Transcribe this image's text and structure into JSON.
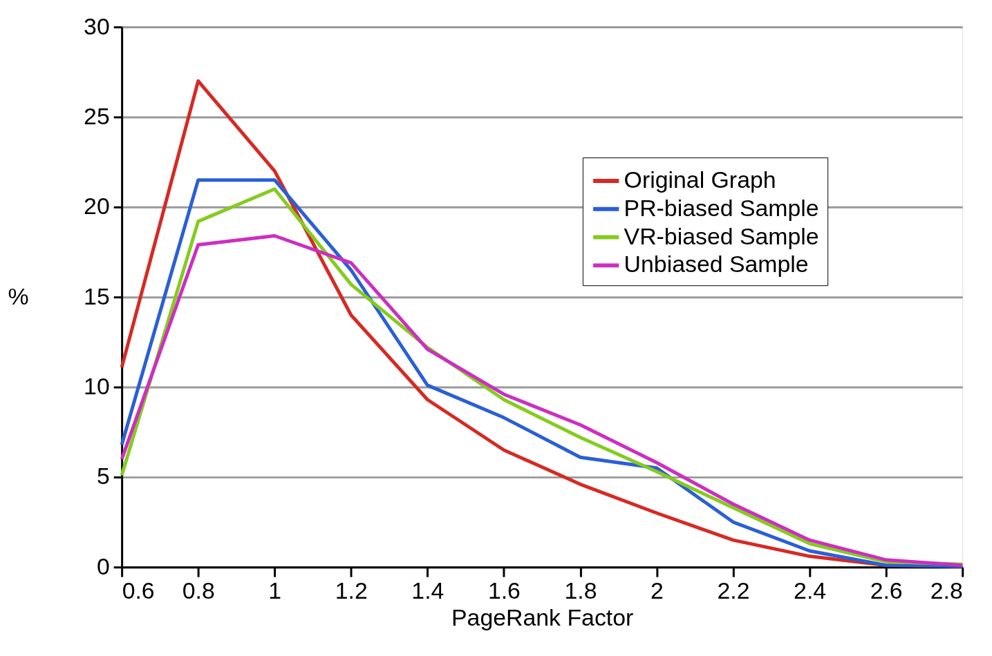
{
  "chart_data": {
    "type": "line",
    "xlabel": "PageRank Factor",
    "ylabel": "%",
    "x": [
      0.6,
      0.8,
      1.0,
      1.2,
      1.4,
      1.6,
      1.8,
      2.0,
      2.2,
      2.4,
      2.6,
      2.8
    ],
    "series": [
      {
        "name": "Original Graph",
        "color": "#d62a23",
        "values": [
          11.1,
          27.0,
          22.0,
          14.0,
          9.3,
          6.5,
          4.6,
          3.0,
          1.5,
          0.6,
          0.1,
          0.05
        ]
      },
      {
        "name": "PR-biased Sample",
        "color": "#2a5fd6",
        "values": [
          6.8,
          21.5,
          21.5,
          16.5,
          10.1,
          8.3,
          6.1,
          5.5,
          2.5,
          0.9,
          0.1,
          0.05
        ]
      },
      {
        "name": "VR-biased Sample",
        "color": "#84cc1e",
        "values": [
          5.1,
          19.2,
          21.0,
          15.7,
          12.2,
          9.3,
          7.2,
          5.3,
          3.3,
          1.3,
          0.3,
          0.15
        ]
      },
      {
        "name": "Unbiased Sample",
        "color": "#cc2fc0",
        "values": [
          6.0,
          17.9,
          18.4,
          16.9,
          12.1,
          9.6,
          7.9,
          5.8,
          3.5,
          1.5,
          0.4,
          0.1
        ]
      }
    ],
    "xlim": [
      0.6,
      2.8
    ],
    "xticks": [
      0.6,
      0.8,
      1,
      1.2,
      1.4,
      1.6,
      1.8,
      2,
      2.2,
      2.4,
      2.6,
      2.8
    ],
    "ylim": [
      0,
      30
    ],
    "yticks": [
      0,
      5,
      10,
      15,
      20,
      25,
      30
    ],
    "grid": "y",
    "legend": "top right",
    "marker": "none",
    "line_style": "solid"
  }
}
